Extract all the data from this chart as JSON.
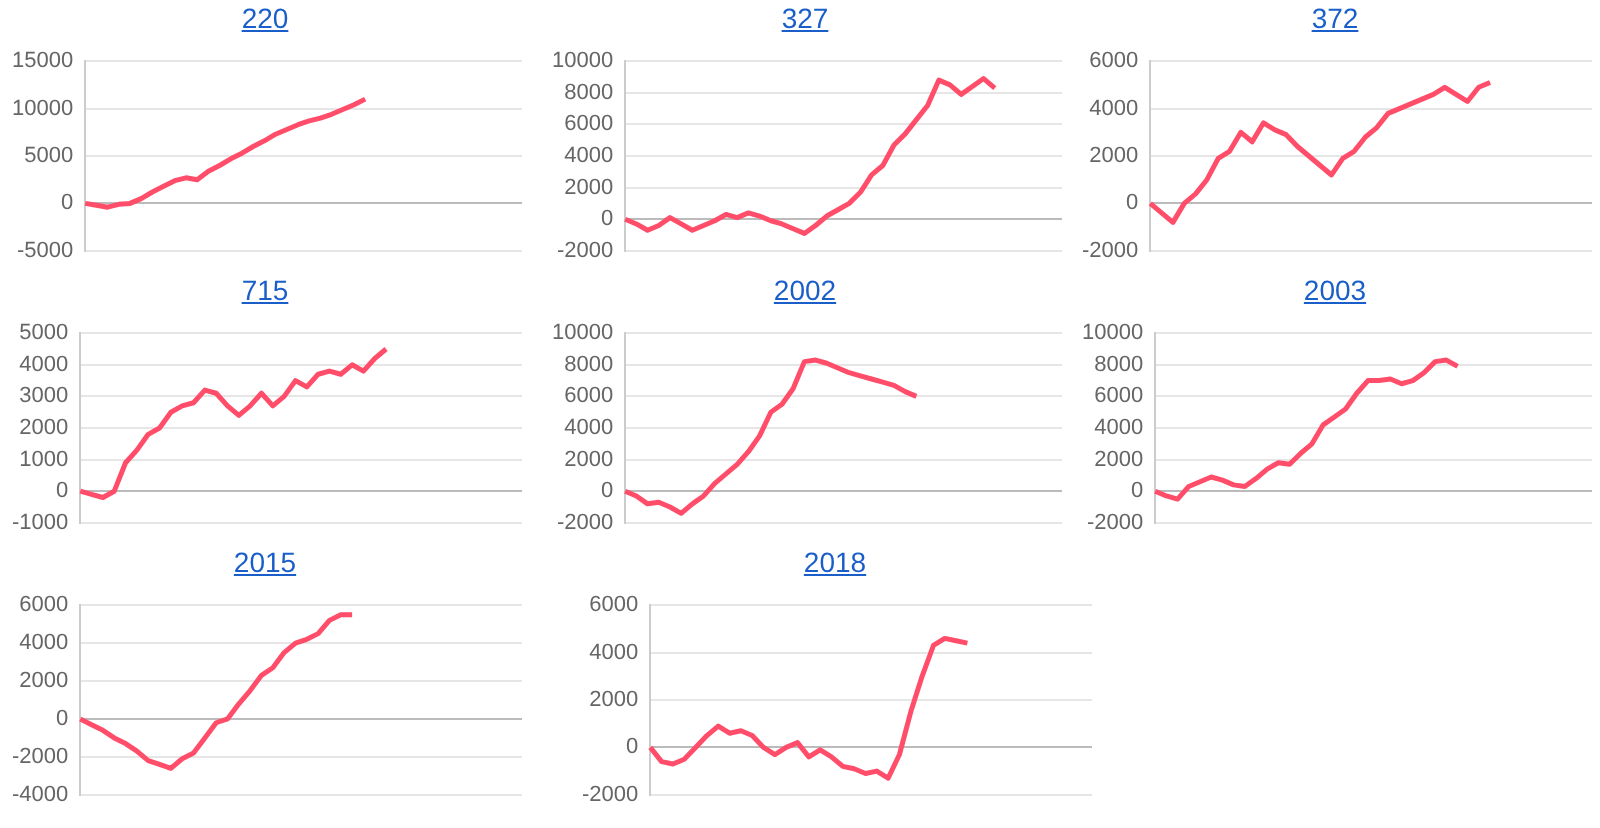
{
  "chart_data": [
    {
      "type": "line",
      "title": "220",
      "categories": [
        null,
        null,
        null,
        null,
        null,
        null,
        null,
        null,
        null,
        null,
        null,
        null,
        null,
        null,
        null,
        null,
        null,
        null,
        null,
        null,
        null,
        null,
        null,
        null,
        null,
        null,
        null,
        null,
        null,
        null,
        null,
        null,
        null,
        null,
        null,
        null,
        null,
        null,
        null,
        null
      ],
      "ylim": [
        -5000,
        15000
      ],
      "yticks": [
        -5000,
        0,
        5000,
        10000,
        15000
      ],
      "grid": "y",
      "tick_labels": "y",
      "marker": "none",
      "series": [
        {
          "color": "#ff4d6a",
          "values": [
            0,
            -200,
            -400,
            -100,
            0,
            500,
            1200,
            1800,
            2400,
            2700,
            2500,
            3400,
            4000,
            4700,
            5300,
            6000,
            6600,
            7300,
            7800,
            8300,
            8700,
            9000,
            9400,
            9900,
            10400,
            11000,
            null,
            null,
            null,
            null,
            null,
            null,
            null,
            null,
            null,
            null,
            null,
            null,
            null,
            null
          ]
        }
      ]
    },
    {
      "type": "line",
      "title": "327",
      "categories": [
        null,
        null,
        null,
        null,
        null,
        null,
        null,
        null,
        null,
        null,
        null,
        null,
        null,
        null,
        null,
        null,
        null,
        null,
        null,
        null,
        null,
        null,
        null,
        null,
        null,
        null,
        null,
        null,
        null,
        null,
        null,
        null,
        null,
        null,
        null,
        null,
        null,
        null,
        null,
        null
      ],
      "ylim": [
        -2000,
        10000
      ],
      "yticks": [
        -2000,
        0,
        2000,
        4000,
        6000,
        8000,
        10000
      ],
      "grid": "y",
      "tick_labels": "y",
      "marker": "none",
      "series": [
        {
          "color": "#ff4d6a",
          "values": [
            0,
            -300,
            -700,
            -400,
            100,
            -300,
            -700,
            -400,
            -100,
            300,
            100,
            400,
            200,
            -100,
            -300,
            -600,
            -900,
            -400,
            200,
            600,
            1000,
            1700,
            2800,
            3400,
            4700,
            5400,
            6300,
            7200,
            8800,
            8500,
            7900,
            8400,
            8900,
            8300,
            null,
            null,
            null,
            null,
            null,
            null
          ]
        }
      ]
    },
    {
      "type": "line",
      "title": "372",
      "categories": [
        null,
        null,
        null,
        null,
        null,
        null,
        null,
        null,
        null,
        null,
        null,
        null,
        null,
        null,
        null,
        null,
        null,
        null,
        null,
        null,
        null,
        null,
        null,
        null,
        null,
        null,
        null,
        null,
        null,
        null,
        null,
        null,
        null,
        null,
        null,
        null,
        null,
        null,
        null,
        null
      ],
      "ylim": [
        -2000,
        6000
      ],
      "yticks": [
        -2000,
        0,
        2000,
        4000,
        6000
      ],
      "grid": "y",
      "tick_labels": "y",
      "marker": "none",
      "series": [
        {
          "color": "#ff4d6a",
          "values": [
            0,
            -400,
            -800,
            0,
            400,
            1000,
            1900,
            2200,
            3000,
            2600,
            3400,
            3100,
            2900,
            2400,
            2000,
            1600,
            1200,
            1900,
            2200,
            2800,
            3200,
            3800,
            4000,
            4200,
            4400,
            4600,
            4900,
            4600,
            4300,
            4900,
            5100,
            null,
            null,
            null,
            null,
            null,
            null,
            null,
            null,
            null
          ]
        }
      ]
    },
    {
      "type": "line",
      "title": "715",
      "categories": [
        null,
        null,
        null,
        null,
        null,
        null,
        null,
        null,
        null,
        null,
        null,
        null,
        null,
        null,
        null,
        null,
        null,
        null,
        null,
        null,
        null,
        null,
        null,
        null,
        null,
        null,
        null,
        null,
        null,
        null,
        null,
        null,
        null,
        null,
        null,
        null,
        null,
        null,
        null,
        null
      ],
      "ylim": [
        -1000,
        5000
      ],
      "yticks": [
        -1000,
        0,
        1000,
        2000,
        3000,
        4000,
        5000
      ],
      "grid": "y",
      "tick_labels": "y",
      "marker": "none",
      "series": [
        {
          "color": "#ff4d6a",
          "values": [
            0,
            -100,
            -200,
            0,
            900,
            1300,
            1800,
            2000,
            2500,
            2700,
            2800,
            3200,
            3100,
            2700,
            2400,
            2700,
            3100,
            2700,
            3000,
            3500,
            3300,
            3700,
            3800,
            3700,
            4000,
            3800,
            4200,
            4500,
            null,
            null,
            null,
            null,
            null,
            null,
            null,
            null,
            null,
            null,
            null,
            null
          ]
        }
      ]
    },
    {
      "type": "line",
      "title": "2002",
      "categories": [
        null,
        null,
        null,
        null,
        null,
        null,
        null,
        null,
        null,
        null,
        null,
        null,
        null,
        null,
        null,
        null,
        null,
        null,
        null,
        null,
        null,
        null,
        null,
        null,
        null,
        null,
        null,
        null,
        null,
        null,
        null,
        null,
        null,
        null,
        null,
        null,
        null,
        null,
        null,
        null
      ],
      "ylim": [
        -2000,
        10000
      ],
      "yticks": [
        -2000,
        0,
        2000,
        4000,
        6000,
        8000,
        10000
      ],
      "grid": "y",
      "tick_labels": "y",
      "marker": "none",
      "series": [
        {
          "color": "#ff4d6a",
          "values": [
            0,
            -300,
            -800,
            -700,
            -1000,
            -1400,
            -800,
            -300,
            500,
            1100,
            1700,
            2500,
            3500,
            5000,
            5500,
            6500,
            8200,
            8300,
            8100,
            7800,
            7500,
            7300,
            7100,
            6900,
            6700,
            6300,
            6000,
            null,
            null,
            null,
            null,
            null,
            null,
            null,
            null,
            null,
            null,
            null,
            null,
            null
          ]
        }
      ]
    },
    {
      "type": "line",
      "title": "2003",
      "categories": [
        null,
        null,
        null,
        null,
        null,
        null,
        null,
        null,
        null,
        null,
        null,
        null,
        null,
        null,
        null,
        null,
        null,
        null,
        null,
        null,
        null,
        null,
        null,
        null,
        null,
        null,
        null,
        null,
        null,
        null,
        null,
        null,
        null,
        null,
        null,
        null,
        null,
        null,
        null,
        null
      ],
      "ylim": [
        -2000,
        10000
      ],
      "yticks": [
        -2000,
        0,
        2000,
        4000,
        6000,
        8000,
        10000
      ],
      "grid": "y",
      "tick_labels": "y",
      "marker": "none",
      "series": [
        {
          "color": "#ff4d6a",
          "values": [
            0,
            -300,
            -500,
            300,
            600,
            900,
            700,
            400,
            300,
            800,
            1400,
            1800,
            1700,
            2400,
            3000,
            4200,
            4700,
            5200,
            6200,
            7000,
            7000,
            7100,
            6800,
            7000,
            7500,
            8200,
            8300,
            7900,
            null,
            null,
            null,
            null,
            null,
            null,
            null,
            null,
            null,
            null,
            null,
            null
          ]
        }
      ]
    },
    {
      "type": "line",
      "title": "2015",
      "categories": [
        null,
        null,
        null,
        null,
        null,
        null,
        null,
        null,
        null,
        null,
        null,
        null,
        null,
        null,
        null,
        null,
        null,
        null,
        null,
        null,
        null,
        null,
        null,
        null,
        null,
        null,
        null,
        null,
        null,
        null,
        null,
        null,
        null,
        null,
        null,
        null,
        null,
        null,
        null,
        null
      ],
      "ylim": [
        -4000,
        6000
      ],
      "yticks": [
        -4000,
        -2000,
        0,
        2000,
        4000,
        6000
      ],
      "grid": "y",
      "tick_labels": "y",
      "marker": "none",
      "series": [
        {
          "color": "#ff4d6a",
          "values": [
            0,
            -300,
            -600,
            -1000,
            -1300,
            -1700,
            -2200,
            -2400,
            -2600,
            -2100,
            -1800,
            -1000,
            -200,
            0,
            800,
            1500,
            2300,
            2700,
            3500,
            4000,
            4200,
            4500,
            5200,
            5500,
            5500,
            null,
            null,
            null,
            null,
            null,
            null,
            null,
            null,
            null,
            null,
            null,
            null,
            null,
            null,
            null
          ]
        }
      ]
    },
    {
      "type": "line",
      "title": "2018",
      "categories": [
        null,
        null,
        null,
        null,
        null,
        null,
        null,
        null,
        null,
        null,
        null,
        null,
        null,
        null,
        null,
        null,
        null,
        null,
        null,
        null,
        null,
        null,
        null,
        null,
        null,
        null,
        null,
        null,
        null,
        null,
        null,
        null,
        null,
        null,
        null,
        null,
        null,
        null,
        null,
        null
      ],
      "ylim": [
        -2000,
        6000
      ],
      "yticks": [
        -2000,
        0,
        2000,
        4000,
        6000
      ],
      "grid": "y",
      "tick_labels": "y",
      "marker": "none",
      "series": [
        {
          "color": "#ff4d6a",
          "values": [
            0,
            -600,
            -700,
            -500,
            0,
            500,
            900,
            600,
            700,
            500,
            0,
            -300,
            0,
            200,
            -400,
            -100,
            -400,
            -800,
            -900,
            -1100,
            -1000,
            -1300,
            -300,
            1500,
            3000,
            4300,
            4600,
            4500,
            4400,
            null,
            null,
            null,
            null,
            null,
            null,
            null,
            null,
            null,
            null,
            null
          ]
        }
      ]
    }
  ]
}
